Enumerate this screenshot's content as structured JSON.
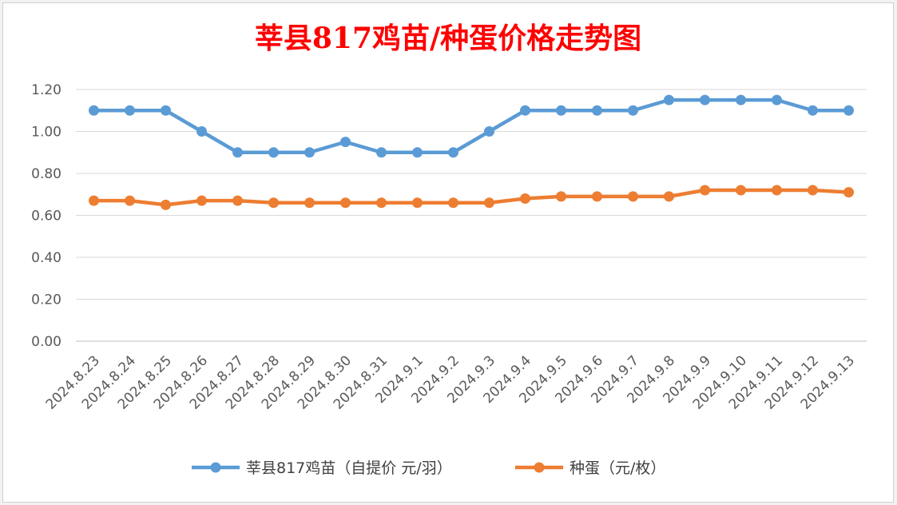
{
  "chart_data": {
    "type": "line",
    "title": "莘县817鸡苗/种蛋价格走势图",
    "xlabel": "",
    "ylabel": "",
    "ylim": [
      0,
      1.2
    ],
    "yticks": [
      "0.00",
      "0.20",
      "0.40",
      "0.60",
      "0.80",
      "1.00",
      "1.20"
    ],
    "grid": true,
    "legend_position": "bottom",
    "categories": [
      "2024.8.23",
      "2024.8.24",
      "2024.8.25",
      "2024.8.26",
      "2024.8.27",
      "2024.8.28",
      "2024.8.29",
      "2024.8.30",
      "2024.8.31",
      "2024.9.1",
      "2024.9.2",
      "2024.9.3",
      "2024.9.4",
      "2024.9.5",
      "2024.9.6",
      "2024.9.7",
      "2024.9.8",
      "2024.9.9",
      "2024.9.10",
      "2024.9.11",
      "2024.9.12",
      "2024.9.13"
    ],
    "series": [
      {
        "name": "莘县817鸡苗（自提价 元/羽）",
        "color": "#5b9bd5",
        "values": [
          1.1,
          1.1,
          1.1,
          1.0,
          0.9,
          0.9,
          0.9,
          0.95,
          0.9,
          0.9,
          0.9,
          1.0,
          1.1,
          1.1,
          1.1,
          1.1,
          1.15,
          1.15,
          1.15,
          1.15,
          1.1,
          1.1
        ]
      },
      {
        "name": "种蛋（元/枚）",
        "color": "#ed7d31",
        "values": [
          0.67,
          0.67,
          0.65,
          0.67,
          0.67,
          0.66,
          0.66,
          0.66,
          0.66,
          0.66,
          0.66,
          0.66,
          0.68,
          0.69,
          0.69,
          0.69,
          0.69,
          0.72,
          0.72,
          0.72,
          0.72,
          0.71
        ]
      }
    ]
  }
}
